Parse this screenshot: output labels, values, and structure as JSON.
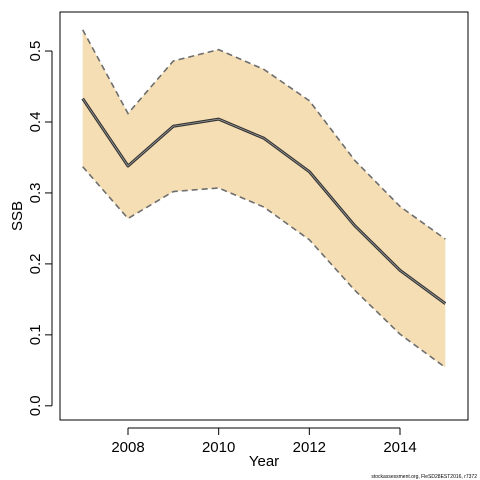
{
  "chart_data": {
    "type": "area",
    "xlabel": "Year",
    "ylabel": "SSB",
    "xlim": [
      2006.5,
      2015.5
    ],
    "ylim": [
      -0.02,
      0.555
    ],
    "x_ticks": [
      2008,
      2010,
      2012,
      2014
    ],
    "x_tick_labels": [
      "2008",
      "2010",
      "2012",
      "2014"
    ],
    "y_ticks": [
      0.0,
      0.1,
      0.2,
      0.3,
      0.4,
      0.5
    ],
    "y_tick_labels": [
      "0.0",
      "0.1",
      "0.2",
      "0.3",
      "0.4",
      "0.5"
    ],
    "x": [
      2007,
      2008,
      2009,
      2010,
      2011,
      2012,
      2013,
      2014,
      2015
    ],
    "series": [
      {
        "role": "estimate",
        "values": [
          0.433,
          0.338,
          0.394,
          0.404,
          0.377,
          0.33,
          0.254,
          0.191,
          0.144
        ]
      },
      {
        "role": "upper",
        "values": [
          0.53,
          0.412,
          0.486,
          0.502,
          0.474,
          0.43,
          0.346,
          0.281,
          0.235
        ]
      },
      {
        "role": "lower",
        "values": [
          0.337,
          0.264,
          0.302,
          0.307,
          0.28,
          0.234,
          0.163,
          0.101,
          0.054
        ]
      }
    ],
    "colors": {
      "band": "#f5deb3",
      "bound_line": "#6e6e6e",
      "estimate_line": "#333333"
    },
    "grid": false,
    "footer": "stockassessment.org, FleSD28EST2016, r7372"
  }
}
